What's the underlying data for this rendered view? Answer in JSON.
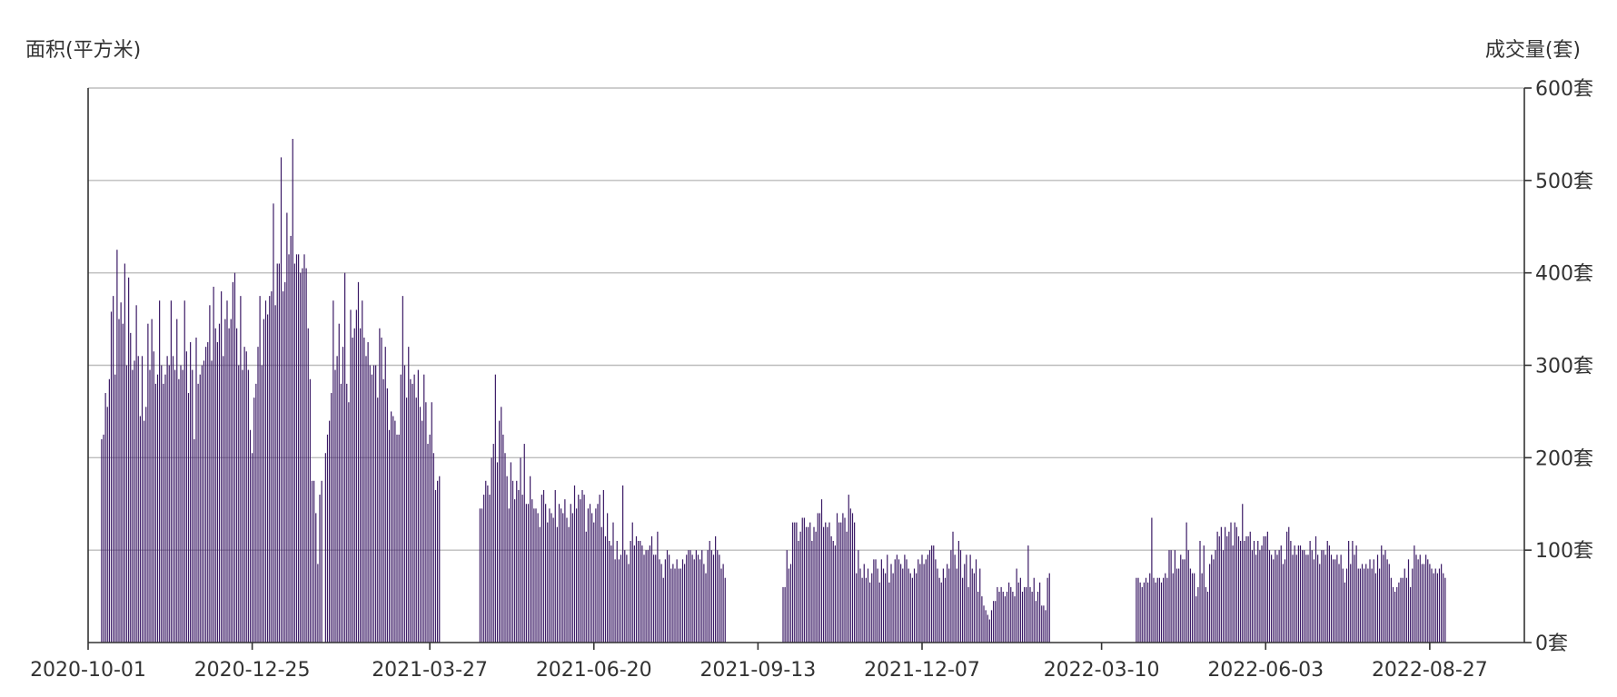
{
  "chart_data": {
    "type": "bar",
    "left_axis_label": "面积(平方米)",
    "right_axis_label": "成交量(套)",
    "y_right": {
      "ylim": [
        0,
        600
      ],
      "ticks": [
        0,
        100,
        200,
        300,
        400,
        500,
        600
      ],
      "tick_labels": [
        "0套",
        "100套",
        "200套",
        "300套",
        "400套",
        "500套",
        "600套"
      ]
    },
    "x_axis": {
      "range": [
        "2020-10-01",
        "2022-10-15"
      ],
      "tick_labels": [
        "2020-10-01",
        "2020-12-25",
        "2021-03-27",
        "2021-06-20",
        "2021-09-13",
        "2021-12-07",
        "2022-03-10",
        "2022-06-03",
        "2022-08-27"
      ]
    },
    "grid": true,
    "bar_color": "#3b1a66",
    "series": [
      {
        "segments": [
          {
            "start": "2020-10-08",
            "values": [
              220,
              225,
              270,
              255,
              285,
              358,
              375,
              290,
              425,
              350,
              368,
              345,
              410,
              300,
              395,
              335,
              295,
              305,
              365,
              310,
              245,
              310,
              240,
              255,
              345,
              295,
              350,
              315,
              280,
              290,
              370,
              300,
              280,
              290,
              310,
              300,
              370,
              310,
              295,
              350,
              285,
              300,
              295,
              370,
              315,
              270,
              325,
              295,
              220,
              330,
              280,
              290,
              300,
              305,
              320,
              325,
              365,
              305,
              385,
              340,
              325,
              345,
              380,
              310,
              350,
              370,
              340,
              350,
              390,
              400,
              340,
              300,
              375,
              295,
              320,
              315,
              295,
              230,
              205,
              265,
              280,
              320,
              375,
              300,
              350,
              370,
              355,
              375,
              380,
              475,
              365,
              410,
              410,
              525,
              380,
              390,
              465,
              420,
              440,
              545,
              410,
              420,
              420,
              400,
              405,
              420,
              405,
              340,
              285,
              175,
              175,
              140,
              85,
              160,
              175
            ]
          },
          {
            "start": "2021-02-01",
            "values": [
              205,
              225,
              240,
              270,
              370,
              295,
              310,
              345,
              280,
              320,
              400,
              280,
              260,
              360,
              330,
              340,
              360,
              390,
              340,
              370,
              330,
              310,
              325,
              300,
              290,
              300,
              300,
              265,
              340,
              330,
              285,
              320,
              275,
              230,
              250,
              245,
              240,
              225,
              225,
              290,
              375,
              300,
              265,
              320,
              285,
              280,
              290,
              265,
              295,
              255,
              240,
              290,
              260,
              215,
              225,
              260,
              205,
              165,
              175,
              180
            ]
          }
        ]
      },
      {
        "segments": [
          {
            "start": "2021-04-22",
            "values": [
              145,
              145,
              160,
              175,
              170,
              160,
              200,
              215,
              290,
              195,
              240,
              255,
              225,
              205,
              180,
              145,
              195,
              175,
              155,
              175,
              165,
              200,
              160,
              215,
              150,
              150,
              180,
              155,
              145,
              145,
              140,
              125,
              160,
              165,
              150,
              130,
              145,
              140,
              135,
              165,
              125,
              150,
              145,
              140,
              155,
              135,
              125,
              150,
              140,
              170,
              145,
              160,
              155,
              165,
              160,
              120,
              145,
              150,
              140,
              130,
              145,
              150,
              160,
              125,
              165,
              115,
              140,
              110,
              105,
              130,
              90,
              110,
              90,
              95,
              170,
              100,
              95,
              85,
              110,
              130,
              105,
              115,
              110,
              110,
              105,
              95,
              100,
              100,
              105,
              115,
              95,
              95,
              120,
              90,
              85,
              70,
              90,
              100,
              95,
              80,
              85,
              80,
              90,
              80,
              80,
              90,
              85,
              95,
              100,
              100,
              95,
              90,
              100,
              95,
              90,
              100,
              85,
              75,
              100,
              110,
              100,
              95,
              115,
              100,
              95,
              80,
              85,
              70
            ]
          },
          {
            "start": "2021-09-26",
            "values": [
              60,
              60,
              100,
              80,
              85,
              130,
              130,
              130,
              110,
              120,
              135,
              135,
              125,
              125,
              130,
              110,
              125,
              120,
              140,
              140,
              155,
              125,
              130,
              125,
              130,
              115,
              110,
              105,
              140,
              130,
              130,
              140,
              135,
              120,
              160,
              145,
              140,
              130,
              75,
              100,
              80,
              70,
              85,
              70,
              80,
              65,
              75,
              90,
              90,
              80,
              65,
              90,
              80,
              75,
              95,
              65,
              85,
              75,
              90,
              95,
              90,
              85,
              80,
              95,
              90,
              80,
              75,
              70,
              80,
              75,
              90,
              85,
              95,
              85,
              90,
              95,
              100,
              105,
              105,
              90,
              80,
              70,
              65,
              80,
              70,
              85,
              80,
              100,
              120,
              95,
              80,
              110,
              100,
              70,
              85,
              95,
              60,
              95,
              80,
              75,
              90,
              55,
              80,
              50,
              40,
              35,
              30,
              25,
              35,
              45,
              45,
              60,
              55,
              60,
              55,
              50,
              55,
              65,
              60,
              55,
              50,
              80,
              65,
              70,
              55,
              60,
              60,
              105,
              60,
              55,
              70,
              45,
              55,
              65,
              40,
              40,
              35,
              70,
              75
            ]
          },
          {
            "start": "2022-03-28",
            "values": [
              70,
              70,
              65,
              60,
              65,
              70,
              65,
              75,
              135,
              70,
              65,
              70,
              70,
              65,
              70,
              75,
              70,
              100,
              100,
              75,
              100,
              80,
              80,
              95,
              90,
              90,
              130,
              100,
              80,
              75,
              75,
              50,
              60,
              110,
              75,
              105,
              60,
              55,
              85,
              95,
              90,
              100,
              120,
              115,
              125,
              100,
              125,
              115,
              120,
              130,
              105,
              130,
              125,
              115,
              110,
              150,
              110,
              115,
              115,
              120,
              100,
              110,
              95,
              110,
              100,
              105,
              115,
              115,
              120,
              100,
              95,
              90,
              100,
              95,
              100,
              105,
              85,
              90,
              120,
              125,
              110,
              95,
              105,
              95,
              105,
              105,
              100,
              100,
              95,
              95,
              110,
              100,
              90,
              115,
              95,
              85,
              100,
              100,
              95,
              110,
              105,
              95,
              90,
              90,
              95,
              85,
              95,
              80,
              65,
              80,
              110,
              85,
              110,
              95,
              105,
              80,
              80,
              85,
              80,
              85,
              80,
              90,
              80,
              90,
              75,
              95,
              80,
              105,
              95,
              100,
              90,
              85,
              70,
              60,
              55,
              60,
              65,
              70,
              70,
              80,
              70,
              90,
              60,
              80,
              105,
              95,
              90,
              95,
              85,
              85,
              95,
              90,
              85,
              80,
              75,
              80,
              75,
              80,
              85,
              75,
              70
            ]
          }
        ]
      }
    ]
  }
}
